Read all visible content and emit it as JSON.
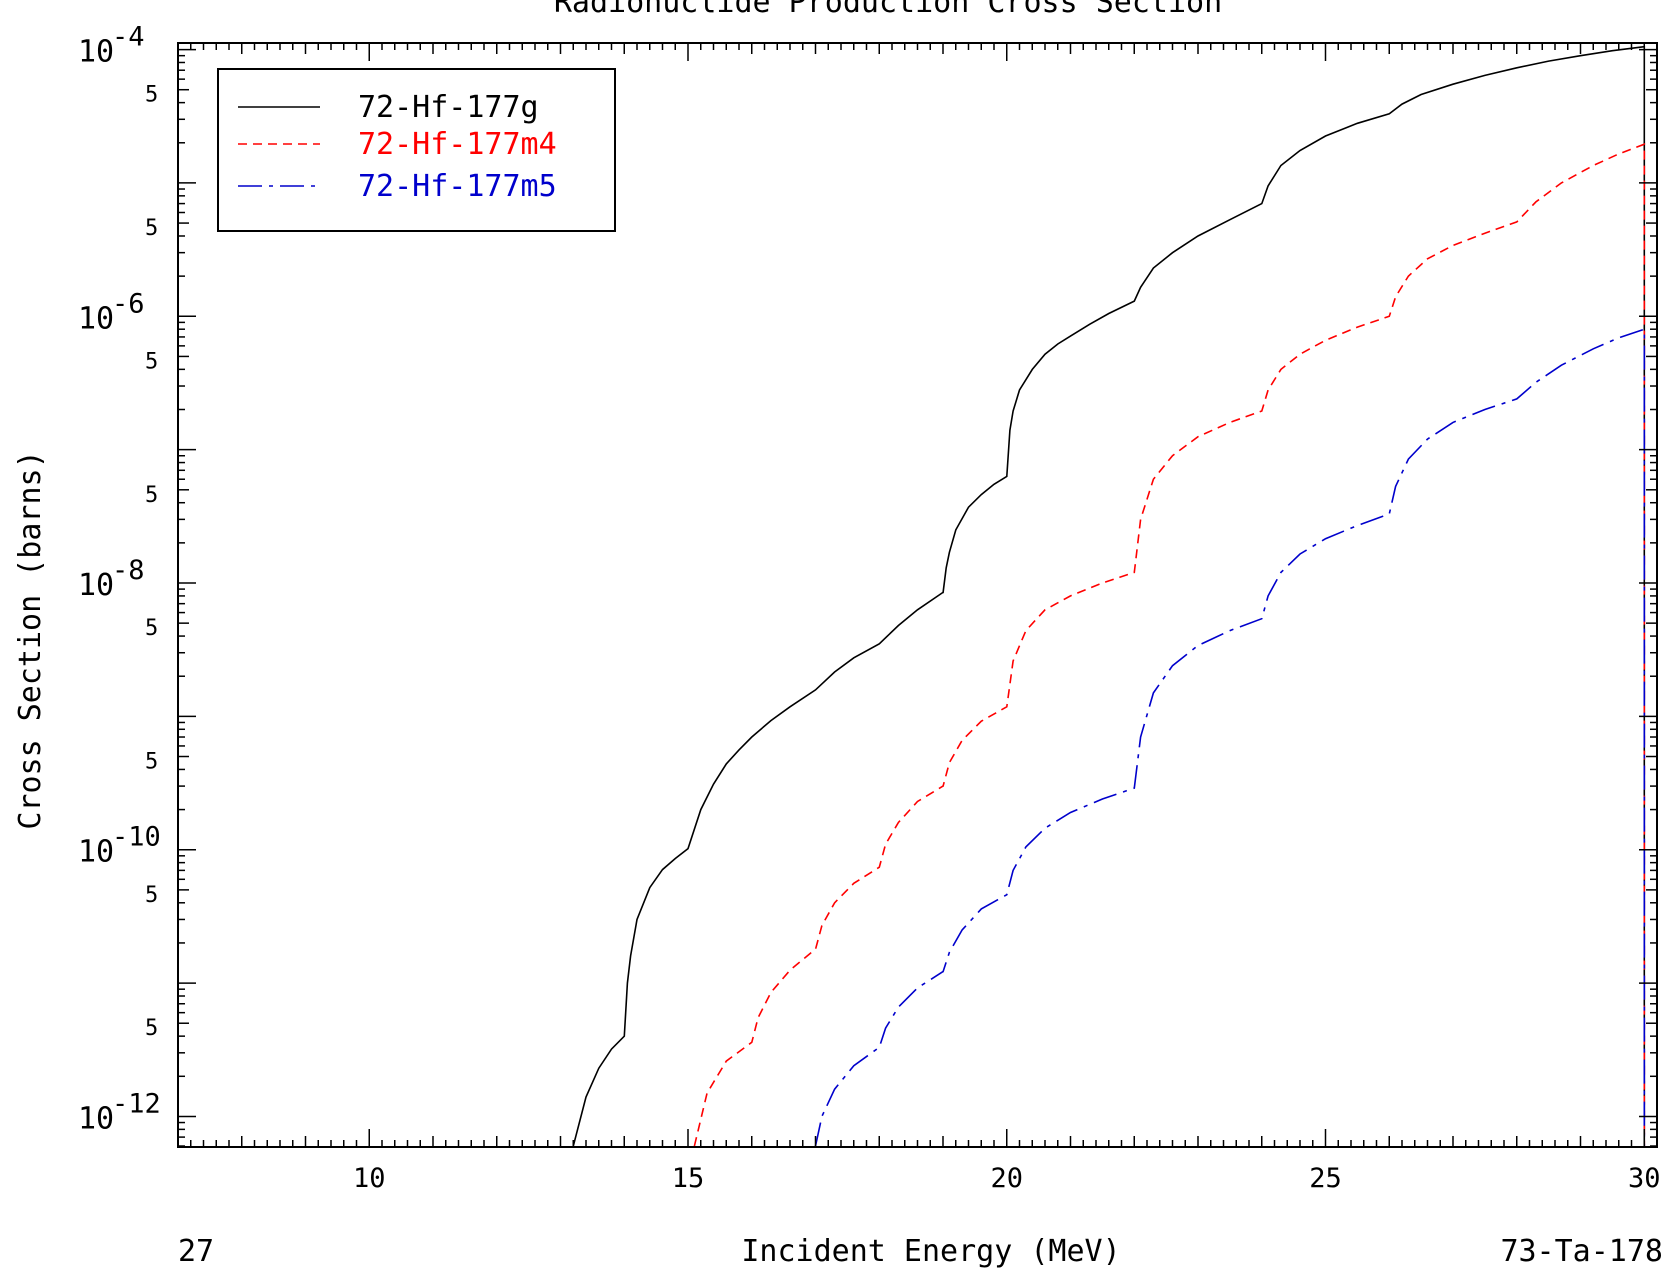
{
  "chart_data": {
    "type": "line",
    "title": "Radionuclide Production Cross Section",
    "xlabel": "Incident Energy (MeV)",
    "ylabel": "Cross Section (barns)",
    "footer_left": "27",
    "footer_right": "73-Ta-178",
    "x_scale": "linear",
    "y_scale": "log",
    "xlim": [
      7,
      30.2
    ],
    "ylim": [
      5.9e-13,
      0.000112
    ],
    "x_ticks": [
      10,
      15,
      20,
      25,
      30
    ],
    "x_tick_labels": [
      "10",
      "15",
      "20",
      "25",
      "30"
    ],
    "y_major_ticks": [
      {
        "value": 0.0001,
        "base": "10",
        "exp": "-4"
      },
      {
        "value": 1e-06,
        "base": "10",
        "exp": "-6"
      },
      {
        "value": 1e-08,
        "base": "10",
        "exp": "-8"
      },
      {
        "value": 1e-10,
        "base": "10",
        "exp": "-10"
      },
      {
        "value": 1e-12,
        "base": "10",
        "exp": "-12"
      }
    ],
    "y_minor_label": "5",
    "grid": false,
    "legend_position": "top-left",
    "series": [
      {
        "name": "72-Hf-177g",
        "color": "#000000",
        "dash": "solid",
        "x": [
          13.2,
          13.4,
          13.6,
          13.8,
          14.0,
          14.001,
          14.05,
          14.1,
          14.2,
          14.4,
          14.6,
          14.8,
          15.0,
          15.2,
          15.4,
          15.6,
          15.8,
          16.0,
          16.3,
          16.6,
          17.0,
          17.3,
          17.6,
          18.0,
          18.3,
          18.6,
          19.0,
          19.001,
          19.05,
          19.1,
          19.2,
          19.4,
          19.6,
          19.8,
          20.0,
          20.001,
          20.05,
          20.1,
          20.2,
          20.4,
          20.6,
          20.8,
          21.0,
          21.3,
          21.6,
          22.0,
          22.001,
          22.1,
          22.3,
          22.6,
          23.0,
          23.5,
          24.0,
          24.001,
          24.1,
          24.3,
          24.6,
          25.0,
          25.5,
          26.0,
          26.001,
          26.2,
          26.5,
          27.0,
          27.5,
          28.0,
          28.5,
          29.0,
          29.5,
          30.0
        ],
        "y": [
          6e-13,
          1.4e-12,
          2.3e-12,
          3.2e-12,
          4e-12,
          4e-12,
          1e-11,
          1.6e-11,
          3e-11,
          5.2e-11,
          7.1e-11,
          8.6e-11,
          1.02e-10,
          2e-10,
          3.1e-10,
          4.4e-10,
          5.6e-10,
          7e-10,
          9.3e-10,
          1.18e-09,
          1.58e-09,
          2.15e-09,
          2.75e-09,
          3.5e-09,
          4.8e-09,
          6.3e-09,
          8.5e-09,
          8.5e-09,
          1.3e-08,
          1.7e-08,
          2.5e-08,
          3.7e-08,
          4.6e-08,
          5.5e-08,
          6.3e-08,
          6.3e-08,
          1.4e-07,
          1.95e-07,
          2.8e-07,
          4e-07,
          5.2e-07,
          6.2e-07,
          7.1e-07,
          8.7e-07,
          1.05e-06,
          1.3e-06,
          1.3e-06,
          1.65e-06,
          2.3e-06,
          3e-06,
          4e-06,
          5.3e-06,
          7e-06,
          7e-06,
          9.5e-06,
          1.35e-05,
          1.75e-05,
          2.25e-05,
          2.8e-05,
          3.3e-05,
          3.3e-05,
          3.9e-05,
          4.6e-05,
          5.5e-05,
          6.4e-05,
          7.3e-05,
          8.2e-05,
          9e-05,
          9.8e-05,
          0.000105
        ]
      },
      {
        "name": "72-Hf-177m4",
        "color": "#ff0000",
        "dash": "dashed",
        "x": [
          15.1,
          15.3,
          15.6,
          16.0,
          16.001,
          16.1,
          16.3,
          16.6,
          17.0,
          17.001,
          17.1,
          17.3,
          17.6,
          18.0,
          18.001,
          18.1,
          18.3,
          18.6,
          19.0,
          19.001,
          19.1,
          19.3,
          19.6,
          20.0,
          20.001,
          20.1,
          20.3,
          20.6,
          21.0,
          21.5,
          22.0,
          22.001,
          22.1,
          22.3,
          22.6,
          23.0,
          23.5,
          24.0,
          24.001,
          24.1,
          24.3,
          24.6,
          25.0,
          25.5,
          26.0,
          26.001,
          26.1,
          26.3,
          26.6,
          27.0,
          27.5,
          28.0,
          28.001,
          28.3,
          28.7,
          29.2,
          29.6,
          30.0
        ],
        "y": [
          6e-13,
          1.5e-12,
          2.6e-12,
          3.6e-12,
          3.6e-12,
          5.5e-12,
          8.5e-12,
          1.25e-11,
          1.8e-11,
          1.8e-11,
          2.7e-11,
          4e-11,
          5.6e-11,
          7.4e-11,
          7.4e-11,
          1.1e-10,
          1.6e-10,
          2.3e-10,
          3e-10,
          3e-10,
          4.5e-10,
          6.6e-10,
          9.2e-10,
          1.18e-09,
          1.18e-09,
          2.6e-09,
          4.4e-09,
          6.3e-09,
          8e-09,
          1e-08,
          1.2e-08,
          1.2e-08,
          3e-08,
          6e-08,
          9e-08,
          1.25e-07,
          1.6e-07,
          1.95e-07,
          1.95e-07,
          2.8e-07,
          4e-07,
          5.2e-07,
          6.6e-07,
          8.3e-07,
          1e-06,
          1e-06,
          1.4e-06,
          2e-06,
          2.7e-06,
          3.4e-06,
          4.2e-06,
          5.1e-06,
          5.1e-06,
          7.2e-06,
          1e-05,
          1.35e-05,
          1.65e-05,
          1.95e-05
        ]
      },
      {
        "name": "72-Hf-177m5",
        "color": "#0000cc",
        "dash": "dashdot",
        "x": [
          17.0,
          17.1,
          17.3,
          17.6,
          18.0,
          18.001,
          18.1,
          18.3,
          18.6,
          19.0,
          19.001,
          19.1,
          19.3,
          19.6,
          20.0,
          20.001,
          20.1,
          20.3,
          20.6,
          21.0,
          21.5,
          22.0,
          22.001,
          22.1,
          22.3,
          22.6,
          23.0,
          23.5,
          24.0,
          24.001,
          24.1,
          24.3,
          24.6,
          25.0,
          25.5,
          26.0,
          26.001,
          26.1,
          26.3,
          26.6,
          27.0,
          27.5,
          28.0,
          28.001,
          28.3,
          28.7,
          29.2,
          29.6,
          30.0
        ],
        "y": [
          6e-13,
          1e-12,
          1.6e-12,
          2.4e-12,
          3.3e-12,
          3.3e-12,
          4.6e-12,
          6.6e-12,
          9.2e-12,
          1.22e-11,
          1.22e-11,
          1.7e-11,
          2.5e-11,
          3.6e-11,
          4.6e-11,
          4.6e-11,
          7e-11,
          1.05e-10,
          1.45e-10,
          1.9e-10,
          2.4e-10,
          2.9e-10,
          2.9e-10,
          7e-10,
          1.5e-09,
          2.4e-09,
          3.4e-09,
          4.4e-09,
          5.4e-09,
          5.4e-09,
          8e-09,
          1.2e-08,
          1.65e-08,
          2.15e-08,
          2.7e-08,
          3.3e-08,
          3.3e-08,
          5.3e-08,
          8.5e-08,
          1.2e-07,
          1.6e-07,
          2e-07,
          2.4e-07,
          2.4e-07,
          3.2e-07,
          4.3e-07,
          5.7e-07,
          6.9e-07,
          8e-07
        ]
      }
    ]
  }
}
